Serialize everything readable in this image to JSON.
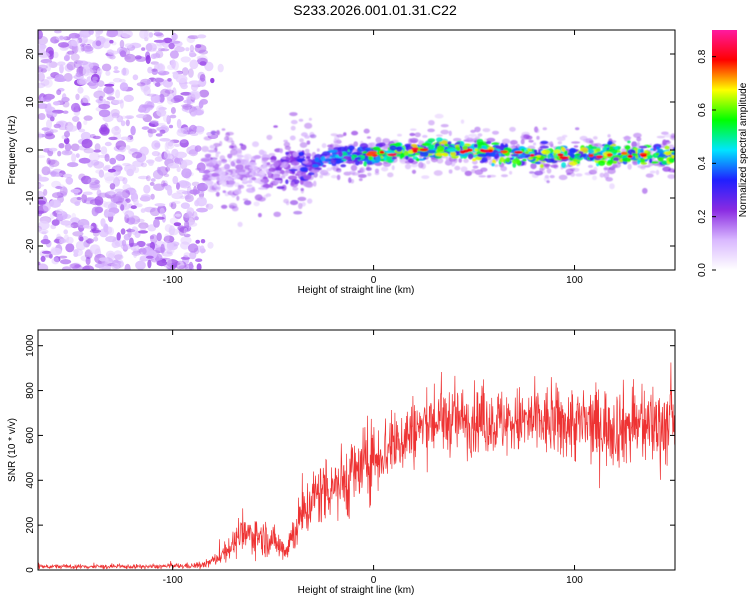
{
  "title": "S233.2026.001.01.31.C22",
  "top_panel": {
    "ylabel": "Frequency (Hz)",
    "xlabel": "Height of straight line (km)",
    "colorbar_label": "Normalized spectral amplitude"
  },
  "bottom_panel": {
    "ylabel": "SNR (10 * v/v)",
    "xlabel": "Height of straight line (km)"
  },
  "chart_data": [
    {
      "type": "heatmap",
      "title": "S233.2026.001.01.31.C22",
      "xlabel": "Height of straight line (km)",
      "ylabel": "Frequency (Hz)",
      "xlim": [
        -167,
        150
      ],
      "ylim": [
        -25,
        25
      ],
      "x_ticks": [
        -100,
        0,
        100
      ],
      "y_ticks": [
        -20,
        -10,
        0,
        10,
        20
      ],
      "colorbar": {
        "label": "Normalized spectral amplitude",
        "range": [
          0.0,
          0.9
        ],
        "ticks": [
          0.0,
          0.2,
          0.4,
          0.6,
          0.8
        ],
        "colormap": [
          "#ffffff",
          "#d9b8ff",
          "#8a2be2",
          "#2020ff",
          "#00e5ff",
          "#00ff00",
          "#ffff00",
          "#ff0000",
          "#ff1aa0"
        ]
      },
      "regions": [
        {
          "description": "broadband noise",
          "x_range": [
            -167,
            -84
          ],
          "y_range": [
            -25,
            25
          ],
          "amplitude": 0.1
        },
        {
          "description": "signal trace",
          "x_range": [
            -84,
            150
          ],
          "center_frequency_km": [
            [
              -84,
              -4
            ],
            [
              -75,
              -5
            ],
            [
              -60,
              -5
            ],
            [
              -45,
              -4
            ],
            [
              -30,
              -3
            ],
            [
              -15,
              -1
            ],
            [
              0,
              -1
            ],
            [
              20,
              0
            ],
            [
              50,
              0
            ],
            [
              80,
              -1
            ],
            [
              100,
              -1
            ],
            [
              130,
              -1
            ],
            [
              150,
              -1
            ]
          ],
          "amplitude": 0.5
        }
      ]
    },
    {
      "type": "line",
      "xlabel": "Height of straight line (km)",
      "ylabel": "SNR (10 * v/v)",
      "xlim": [
        -167,
        150
      ],
      "ylim": [
        0,
        1070
      ],
      "x_ticks": [
        -100,
        0,
        100
      ],
      "y_ticks": [
        0,
        200,
        400,
        600,
        800,
        1000
      ],
      "series": [
        {
          "name": "SNR",
          "color": "#ee3333",
          "envelope_x": [
            -167,
            -140,
            -110,
            -85,
            -78,
            -72,
            -65,
            -60,
            -50,
            -44,
            -38,
            -30,
            -22,
            -15,
            -8,
            0,
            10,
            20,
            30,
            40,
            60,
            80,
            100,
            120,
            150
          ],
          "envelope_mean": [
            15,
            15,
            15,
            20,
            50,
            100,
            150,
            160,
            130,
            90,
            200,
            320,
            380,
            390,
            440,
            500,
            560,
            620,
            660,
            670,
            660,
            660,
            650,
            640,
            650
          ],
          "envelope_spread": [
            10,
            10,
            10,
            15,
            30,
            55,
            80,
            90,
            70,
            60,
            110,
            140,
            160,
            170,
            170,
            160,
            160,
            160,
            150,
            150,
            150,
            160,
            170,
            180,
            190
          ]
        }
      ]
    }
  ]
}
